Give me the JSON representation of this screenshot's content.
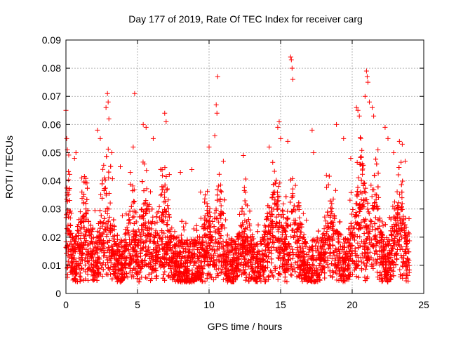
{
  "chart_data": {
    "type": "scatter",
    "title": "Day 177 of 2019, Rate Of TEC Index for receiver carg",
    "xlabel": "GPS time / hours",
    "ylabel": "ROTI / TECUs",
    "xlim": [
      0,
      25
    ],
    "ylim": [
      0,
      0.09
    ],
    "xticks": [
      0,
      5,
      10,
      15,
      20,
      25
    ],
    "xtick_labels": [
      "0",
      "5",
      "10",
      "15",
      "20",
      "25"
    ],
    "yticks": [
      0,
      0.01,
      0.02,
      0.03,
      0.04,
      0.05,
      0.06,
      0.07,
      0.08,
      0.09
    ],
    "ytick_labels": [
      "0",
      "0.01",
      "0.02",
      "0.03",
      "0.04",
      "0.05",
      "0.06",
      "0.07",
      "0.08",
      "0.09"
    ],
    "grid": true,
    "marker": "+",
    "color": "#ff0000",
    "series": [
      {
        "name": "ROTI",
        "highlights": [
          {
            "x": 0.0,
            "y": 0.065
          },
          {
            "x": 0.05,
            "y": 0.055
          },
          {
            "x": 0.1,
            "y": 0.051
          },
          {
            "x": 0.6,
            "y": 0.048
          },
          {
            "x": 0.7,
            "y": 0.05
          },
          {
            "x": 1.1,
            "y": 0.041
          },
          {
            "x": 2.2,
            "y": 0.058
          },
          {
            "x": 2.4,
            "y": 0.055
          },
          {
            "x": 2.8,
            "y": 0.066
          },
          {
            "x": 2.9,
            "y": 0.071
          },
          {
            "x": 2.95,
            "y": 0.068
          },
          {
            "x": 3.0,
            "y": 0.062
          },
          {
            "x": 3.2,
            "y": 0.05
          },
          {
            "x": 3.8,
            "y": 0.045
          },
          {
            "x": 4.5,
            "y": 0.043
          },
          {
            "x": 4.7,
            "y": 0.052
          },
          {
            "x": 4.8,
            "y": 0.071
          },
          {
            "x": 5.4,
            "y": 0.06
          },
          {
            "x": 5.6,
            "y": 0.059
          },
          {
            "x": 6.1,
            "y": 0.055
          },
          {
            "x": 6.9,
            "y": 0.064
          },
          {
            "x": 7.0,
            "y": 0.061
          },
          {
            "x": 8.0,
            "y": 0.043
          },
          {
            "x": 8.8,
            "y": 0.044
          },
          {
            "x": 9.4,
            "y": 0.036
          },
          {
            "x": 10.0,
            "y": 0.052
          },
          {
            "x": 10.4,
            "y": 0.056
          },
          {
            "x": 10.5,
            "y": 0.067
          },
          {
            "x": 10.55,
            "y": 0.064
          },
          {
            "x": 10.6,
            "y": 0.077
          },
          {
            "x": 11.0,
            "y": 0.047
          },
          {
            "x": 12.4,
            "y": 0.049
          },
          {
            "x": 14.2,
            "y": 0.052
          },
          {
            "x": 14.8,
            "y": 0.059
          },
          {
            "x": 14.9,
            "y": 0.061
          },
          {
            "x": 15.0,
            "y": 0.055
          },
          {
            "x": 15.5,
            "y": 0.054
          },
          {
            "x": 15.7,
            "y": 0.084
          },
          {
            "x": 15.75,
            "y": 0.083
          },
          {
            "x": 15.8,
            "y": 0.08
          },
          {
            "x": 15.85,
            "y": 0.076
          },
          {
            "x": 17.2,
            "y": 0.058
          },
          {
            "x": 17.3,
            "y": 0.05
          },
          {
            "x": 18.2,
            "y": 0.042
          },
          {
            "x": 18.9,
            "y": 0.06
          },
          {
            "x": 19.4,
            "y": 0.055
          },
          {
            "x": 19.9,
            "y": 0.048
          },
          {
            "x": 20.3,
            "y": 0.066
          },
          {
            "x": 20.4,
            "y": 0.065
          },
          {
            "x": 20.5,
            "y": 0.063
          },
          {
            "x": 20.6,
            "y": 0.055
          },
          {
            "x": 20.9,
            "y": 0.07
          },
          {
            "x": 21.0,
            "y": 0.079
          },
          {
            "x": 21.05,
            "y": 0.077
          },
          {
            "x": 21.1,
            "y": 0.075
          },
          {
            "x": 21.2,
            "y": 0.068
          },
          {
            "x": 21.4,
            "y": 0.066
          },
          {
            "x": 21.5,
            "y": 0.063
          },
          {
            "x": 21.8,
            "y": 0.051
          },
          {
            "x": 22.3,
            "y": 0.059
          },
          {
            "x": 22.5,
            "y": 0.055
          },
          {
            "x": 22.9,
            "y": 0.05
          },
          {
            "x": 23.3,
            "y": 0.054
          },
          {
            "x": 23.5,
            "y": 0.053
          },
          {
            "x": 23.7,
            "y": 0.047
          }
        ],
        "bursts": [
          {
            "center": 0.15,
            "width": 0.2,
            "peak": 0.052
          },
          {
            "center": 1.3,
            "width": 0.45,
            "peak": 0.038
          },
          {
            "center": 2.8,
            "width": 0.45,
            "peak": 0.05
          },
          {
            "center": 4.6,
            "width": 0.35,
            "peak": 0.04
          },
          {
            "center": 5.6,
            "width": 0.5,
            "peak": 0.042
          },
          {
            "center": 6.8,
            "width": 0.5,
            "peak": 0.04
          },
          {
            "center": 9.9,
            "width": 0.4,
            "peak": 0.036
          },
          {
            "center": 10.7,
            "width": 0.4,
            "peak": 0.04
          },
          {
            "center": 12.5,
            "width": 0.4,
            "peak": 0.035
          },
          {
            "center": 14.6,
            "width": 0.6,
            "peak": 0.045
          },
          {
            "center": 15.9,
            "width": 0.5,
            "peak": 0.04
          },
          {
            "center": 18.5,
            "width": 0.5,
            "peak": 0.036
          },
          {
            "center": 20.6,
            "width": 0.6,
            "peak": 0.05
          },
          {
            "center": 21.6,
            "width": 0.5,
            "peak": 0.045
          },
          {
            "center": 23.3,
            "width": 0.5,
            "peak": 0.042
          }
        ],
        "dense_band": {
          "x_range": [
            0,
            24
          ],
          "y_range": [
            0.004,
            0.03
          ],
          "typical": 0.012
        }
      }
    ]
  }
}
